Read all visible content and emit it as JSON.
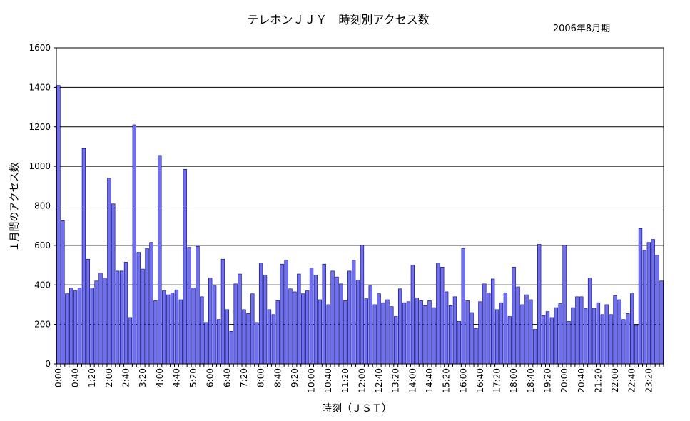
{
  "chart_data": {
    "type": "bar",
    "title": "テレホンＪＪＹ　時刻別アクセス数",
    "subtitle": "2006年8月期",
    "xlabel": "時刻（ＪＳＴ）",
    "ylabel": "１月間のアクセス数",
    "ylim": [
      0,
      1600
    ],
    "yticks": [
      0,
      200,
      400,
      600,
      800,
      1000,
      1200,
      1400,
      1600
    ],
    "grid": true,
    "legend": "none",
    "bar_color": "#7070ee",
    "bar_edge_color": "#000080",
    "xtick_labels": [
      "0:00",
      "0:40",
      "1:20",
      "2:00",
      "2:40",
      "3:20",
      "4:00",
      "4:40",
      "5:20",
      "6:00",
      "6:40",
      "7:20",
      "8:00",
      "8:40",
      "9:20",
      "10:00",
      "10:40",
      "11:20",
      "12:00",
      "12:40",
      "13:20",
      "14:00",
      "14:40",
      "15:20",
      "16:00",
      "16:40",
      "17:20",
      "18:00",
      "18:40",
      "19:20",
      "20:00",
      "20:40",
      "21:20",
      "22:00",
      "22:40",
      "23:20"
    ],
    "xtick_every": 4,
    "categories_note_interval_minutes": 10,
    "values": [
      1410,
      725,
      355,
      385,
      370,
      385,
      1090,
      530,
      385,
      420,
      460,
      435,
      940,
      810,
      470,
      470,
      515,
      235,
      1210,
      565,
      480,
      585,
      615,
      320,
      1055,
      370,
      350,
      360,
      375,
      325,
      985,
      590,
      385,
      595,
      340,
      210,
      435,
      395,
      225,
      530,
      275,
      165,
      405,
      455,
      275,
      255,
      355,
      210,
      510,
      450,
      275,
      250,
      320,
      505,
      525,
      380,
      365,
      455,
      355,
      370,
      485,
      450,
      325,
      505,
      300,
      470,
      440,
      405,
      320,
      470,
      525,
      425,
      600,
      330,
      395,
      300,
      355,
      310,
      325,
      290,
      240,
      380,
      310,
      315,
      500,
      335,
      320,
      295,
      320,
      285,
      510,
      490,
      365,
      295,
      340,
      215,
      585,
      320,
      260,
      180,
      315,
      405,
      360,
      430,
      275,
      310,
      360,
      240,
      490,
      390,
      300,
      350,
      325,
      175,
      605,
      245,
      265,
      235,
      285,
      305,
      600,
      215,
      285,
      340,
      340,
      280,
      435,
      280,
      310,
      250,
      300,
      250,
      345,
      325,
      225,
      255,
      355,
      195,
      685,
      575,
      615,
      630,
      550,
      420
    ]
  }
}
